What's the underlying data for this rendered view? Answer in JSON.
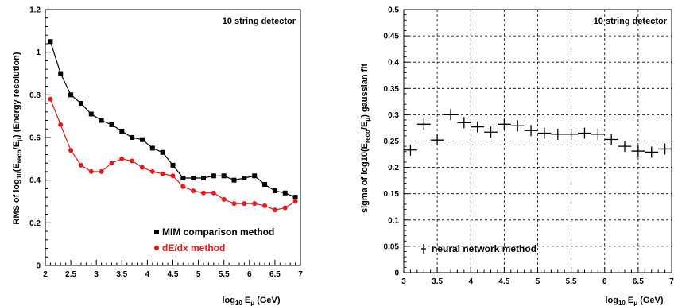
{
  "chart_data": [
    {
      "type": "line",
      "title": "10 string detector",
      "xlabel": "log10 Eμ (GeV)",
      "ylabel": "RMS of log10(Ereco/Eμ) (Energy resolution)",
      "xlim": [
        2,
        7
      ],
      "ylim": [
        0,
        1.2
      ],
      "xticks": [
        "2",
        "2.5",
        "3",
        "3.5",
        "4",
        "4.5",
        "5",
        "5.5",
        "6",
        "6.5",
        "7"
      ],
      "yticks": [
        "0",
        "0.2",
        "0.4",
        "0.6",
        "0.8",
        "1",
        "1.2"
      ],
      "legend_placement": "bottom-right",
      "grid": false,
      "x": [
        2.1,
        2.3,
        2.5,
        2.7,
        2.9,
        3.1,
        3.3,
        3.5,
        3.7,
        3.9,
        4.1,
        4.3,
        4.5,
        4.7,
        4.9,
        5.1,
        5.3,
        5.5,
        5.7,
        5.9,
        6.1,
        6.3,
        6.5,
        6.7,
        6.9
      ],
      "series": [
        {
          "name": "MIM comparison method",
          "color": "#000000",
          "marker": "square",
          "values": [
            1.05,
            0.9,
            0.8,
            0.76,
            0.71,
            0.68,
            0.66,
            0.63,
            0.6,
            0.59,
            0.55,
            0.53,
            0.47,
            0.41,
            0.41,
            0.41,
            0.42,
            0.42,
            0.4,
            0.41,
            0.42,
            0.38,
            0.35,
            0.34,
            0.32
          ]
        },
        {
          "name": "dE/dx method",
          "color": "#e8191c",
          "marker": "circle",
          "values": [
            0.78,
            0.66,
            0.54,
            0.47,
            0.44,
            0.44,
            0.48,
            0.5,
            0.49,
            0.46,
            0.44,
            0.43,
            0.42,
            0.37,
            0.35,
            0.34,
            0.34,
            0.31,
            0.29,
            0.29,
            0.29,
            0.28,
            0.26,
            0.27,
            0.3
          ]
        }
      ]
    },
    {
      "type": "scatter",
      "title": "10 string detector",
      "xlabel": "log10 Eμ (GeV)",
      "ylabel": "sigma of log10(Ereco/Eμ) gaussian fit",
      "xlim": [
        3,
        7
      ],
      "ylim": [
        0,
        0.5
      ],
      "xticks": [
        "3",
        "3.5",
        "4",
        "4.5",
        "5",
        "5.5",
        "6",
        "6.5",
        "7"
      ],
      "yticks": [
        "0",
        "0.05",
        "0.1",
        "0.15",
        "0.2",
        "0.25",
        "0.3",
        "0.35",
        "0.4",
        "0.45",
        "0.5"
      ],
      "grid": true,
      "legend_placement": "bottom-left",
      "series": [
        {
          "name": "neural network method",
          "color": "#000000",
          "marker": "cross",
          "x": [
            3.1,
            3.3,
            3.5,
            3.7,
            3.9,
            4.1,
            4.3,
            4.5,
            4.7,
            4.9,
            5.1,
            5.3,
            5.5,
            5.7,
            5.9,
            6.1,
            6.3,
            6.5,
            6.7,
            6.9
          ],
          "values": [
            0.233,
            0.282,
            0.252,
            0.3,
            0.285,
            0.277,
            0.267,
            0.282,
            0.279,
            0.27,
            0.265,
            0.263,
            0.263,
            0.265,
            0.263,
            0.253,
            0.24,
            0.231,
            0.229,
            0.235
          ]
        }
      ]
    }
  ]
}
